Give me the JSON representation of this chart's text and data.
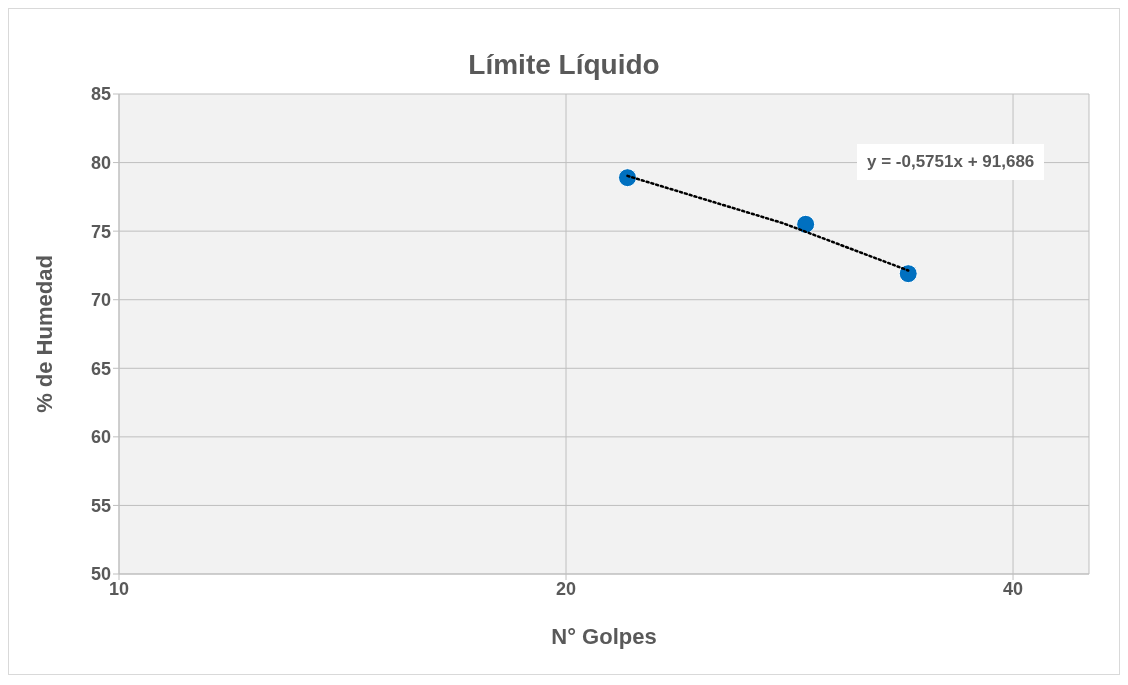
{
  "chart_data": {
    "type": "scatter",
    "title": "Límite Líquido",
    "xlabel": "N° Golpes",
    "ylabel": "% de Humedad",
    "log": "x",
    "xlim": [
      10,
      45
    ],
    "xticks": [
      10,
      20,
      40
    ],
    "ylim": [
      50,
      85
    ],
    "yticks": [
      50,
      55,
      60,
      65,
      70,
      75,
      80,
      85
    ],
    "grid": true,
    "series": [
      {
        "color": "#0070c0",
        "x": [
          22,
          29,
          34
        ],
        "values": [
          78.9,
          75.5,
          71.9
        ],
        "marker": "circle"
      },
      {
        "type": "line",
        "color": "#000000",
        "x": [
          22,
          28,
          34
        ],
        "values": [
          79.03,
          75.58,
          72.13
        ],
        "line_style": "dotted",
        "marker": "none"
      }
    ],
    "annotations": [
      "y = -0,5751x + 91,686"
    ]
  }
}
